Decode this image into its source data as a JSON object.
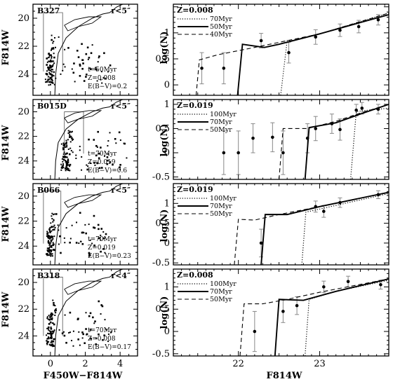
{
  "colors": {
    "ink": "#000000",
    "errorbar": "#888888",
    "background": "#ffffff"
  },
  "cmd_common": {
    "xlabel": "F450W−F814W",
    "ylabel": "F814W",
    "xticks": [
      "0",
      "2",
      "4"
    ],
    "yticks": [
      "20",
      "22",
      "24"
    ]
  },
  "lf_common": {
    "xlabel": "F814W",
    "ylabel": "log(N)",
    "xticks": [
      "22",
      "23"
    ],
    "yticks": [
      "0",
      "0.5",
      "1"
    ],
    "yticks_neg": [
      "-0.5"
    ]
  },
  "chart_data": [
    {
      "type": "scatter",
      "panel": "cmd",
      "cluster": "B327",
      "radius": "r<5″",
      "xlim": [
        -1,
        5
      ],
      "ylim": [
        25.5,
        19
      ],
      "notes": [
        "t=50Myr",
        "Z=0.008",
        "E(B−V)=0.2"
      ],
      "box": [
        -0.4,
        0.7,
        19.6,
        23.8
      ]
    },
    {
      "type": "scatter",
      "panel": "cmd",
      "cluster": "B015D",
      "radius": "r<5″",
      "xlim": [
        -1,
        5
      ],
      "ylim": [
        25.5,
        19
      ],
      "notes": [
        "t=70Myr",
        "Z=0.019",
        "E(B−V)=0.6"
      ],
      "box": [
        0.8,
        1.9,
        20.0,
        23.4
      ]
    },
    {
      "type": "scatter",
      "panel": "cmd",
      "cluster": "B066",
      "radius": "r<5″",
      "xlim": [
        -1,
        5
      ],
      "ylim": [
        25.5,
        19
      ],
      "notes": [
        "t=70Myr",
        "Z=0.019",
        "E(B−V)=0.23"
      ],
      "box": [
        -0.4,
        0.6,
        19.6,
        23.8
      ]
    },
    {
      "type": "scatter",
      "panel": "cmd",
      "cluster": "B318",
      "radius": "r<4″",
      "xlim": [
        -1,
        5
      ],
      "ylim": [
        25.5,
        19
      ],
      "notes": [
        "t=70Myr",
        "Z=0.008",
        "E(B−V)=0.17"
      ],
      "box": [
        -0.4,
        0.7,
        19.6,
        24.0
      ]
    },
    {
      "type": "line",
      "panel": "lf",
      "metallicity": "Z=0.008",
      "xlim": [
        21.2,
        23.85
      ],
      "ylim": [
        -0.2,
        1.55
      ],
      "series": [
        {
          "name": "70Myr",
          "style": "dotted",
          "x": [
            22.52,
            22.6,
            22.65,
            23.0,
            23.85
          ],
          "y": [
            -0.2,
            0.85,
            0.85,
            0.98,
            1.38
          ]
        },
        {
          "name": "50Myr",
          "style": "solid",
          "x": [
            21.99,
            22.05,
            22.32,
            22.5,
            23.0,
            23.85
          ],
          "y": [
            -0.2,
            0.78,
            0.72,
            0.78,
            0.98,
            1.35
          ]
        },
        {
          "name": "40Myr",
          "style": "dashed",
          "x": [
            21.48,
            21.52,
            21.75,
            22.2,
            22.6,
            23.0,
            23.85
          ],
          "y": [
            -0.2,
            0.48,
            0.58,
            0.72,
            0.85,
            0.98,
            1.38
          ]
        }
      ],
      "points": {
        "x": [
          21.55,
          21.82,
          22.28,
          22.62,
          22.95,
          23.25,
          23.48,
          23.72
        ],
        "y": [
          0.32,
          0.32,
          0.85,
          0.62,
          0.92,
          1.05,
          1.12,
          1.25
        ],
        "err": [
          0.3,
          0.3,
          0.14,
          0.2,
          0.14,
          0.12,
          0.12,
          0.1
        ]
      }
    },
    {
      "type": "line",
      "panel": "lf",
      "metallicity": "Z=0.019",
      "xlim": [
        21.2,
        23.85
      ],
      "ylim": [
        -0.55,
        1.1
      ],
      "series": [
        {
          "name": "100Myr",
          "style": "dotted",
          "x": [
            23.38,
            23.45,
            23.6,
            23.85
          ],
          "y": [
            -0.55,
            0.85,
            0.88,
            0.92
          ]
        },
        {
          "name": "70Myr",
          "style": "solid",
          "x": [
            22.82,
            22.87,
            23.2,
            23.5,
            23.85
          ],
          "y": [
            -0.55,
            0.52,
            0.62,
            0.8,
            1.0
          ]
        },
        {
          "name": "50Myr",
          "style": "dashed",
          "x": [
            22.5,
            22.55,
            22.85,
            23.2,
            23.5,
            23.85
          ],
          "y": [
            -0.55,
            0.5,
            0.5,
            0.65,
            0.82,
            1.0
          ]
        }
      ],
      "points": {
        "x": [
          21.82,
          22.0,
          22.18,
          22.42,
          22.55,
          22.85,
          22.95,
          23.15,
          23.25,
          23.45,
          23.52,
          23.72
        ],
        "y": [
          0.0,
          0.0,
          0.3,
          0.32,
          0.0,
          0.3,
          0.5,
          0.6,
          0.48,
          0.88,
          0.92,
          0.9
        ],
        "err": [
          0.45,
          0.45,
          0.3,
          0.3,
          0.45,
          0.3,
          0.25,
          0.2,
          0.22,
          0.12,
          0.12,
          0.1
        ]
      }
    },
    {
      "type": "line",
      "panel": "lf",
      "metallicity": "Z=0.019",
      "xlim": [
        21.2,
        23.85
      ],
      "ylim": [
        -0.55,
        1.5
      ],
      "series": [
        {
          "name": "100Myr",
          "style": "dotted",
          "x": [
            22.78,
            22.83,
            23.2,
            23.85
          ],
          "y": [
            -0.55,
            0.78,
            0.95,
            1.25
          ]
        },
        {
          "name": "70Myr",
          "style": "solid",
          "x": [
            22.28,
            22.33,
            22.6,
            23.0,
            23.85
          ],
          "y": [
            -0.55,
            0.72,
            0.72,
            0.92,
            1.28
          ]
        },
        {
          "name": "50Myr",
          "style": "dashed",
          "x": [
            21.95,
            22.0,
            22.2,
            22.5,
            23.0,
            23.85
          ],
          "y": [
            -0.55,
            0.6,
            0.58,
            0.72,
            0.92,
            1.28
          ]
        }
      ],
      "points": {
        "x": [
          22.28,
          22.95,
          23.05,
          23.25,
          23.72
        ],
        "y": [
          0.0,
          0.92,
          0.8,
          1.02,
          1.22
        ],
        "err": [
          0.35,
          0.14,
          0.15,
          0.12,
          0.1
        ]
      }
    },
    {
      "type": "line",
      "panel": "lf",
      "metallicity": "Z=0.008",
      "xlim": [
        21.2,
        23.85
      ],
      "ylim": [
        -0.55,
        1.4
      ],
      "series": [
        {
          "name": "100Myr",
          "style": "dotted",
          "x": [
            22.82,
            22.87,
            23.2,
            23.85
          ],
          "y": [
            -0.55,
            0.72,
            0.9,
            1.15
          ]
        },
        {
          "name": "70Myr",
          "style": "solid",
          "x": [
            22.45,
            22.5,
            22.8,
            23.2,
            23.85
          ],
          "y": [
            -0.55,
            0.72,
            0.7,
            0.9,
            1.18
          ]
        },
        {
          "name": "50Myr",
          "style": "dashed",
          "x": [
            22.02,
            22.07,
            22.3,
            22.6,
            23.0,
            23.85
          ],
          "y": [
            -0.55,
            0.62,
            0.62,
            0.72,
            0.88,
            1.18
          ]
        }
      ],
      "points": {
        "x": [
          22.2,
          22.55,
          22.72,
          23.05,
          23.35,
          23.75
        ],
        "y": [
          0.0,
          0.45,
          0.58,
          1.0,
          1.12,
          1.05
        ],
        "err": [
          0.45,
          0.25,
          0.2,
          0.13,
          0.12,
          0.1
        ]
      }
    }
  ]
}
